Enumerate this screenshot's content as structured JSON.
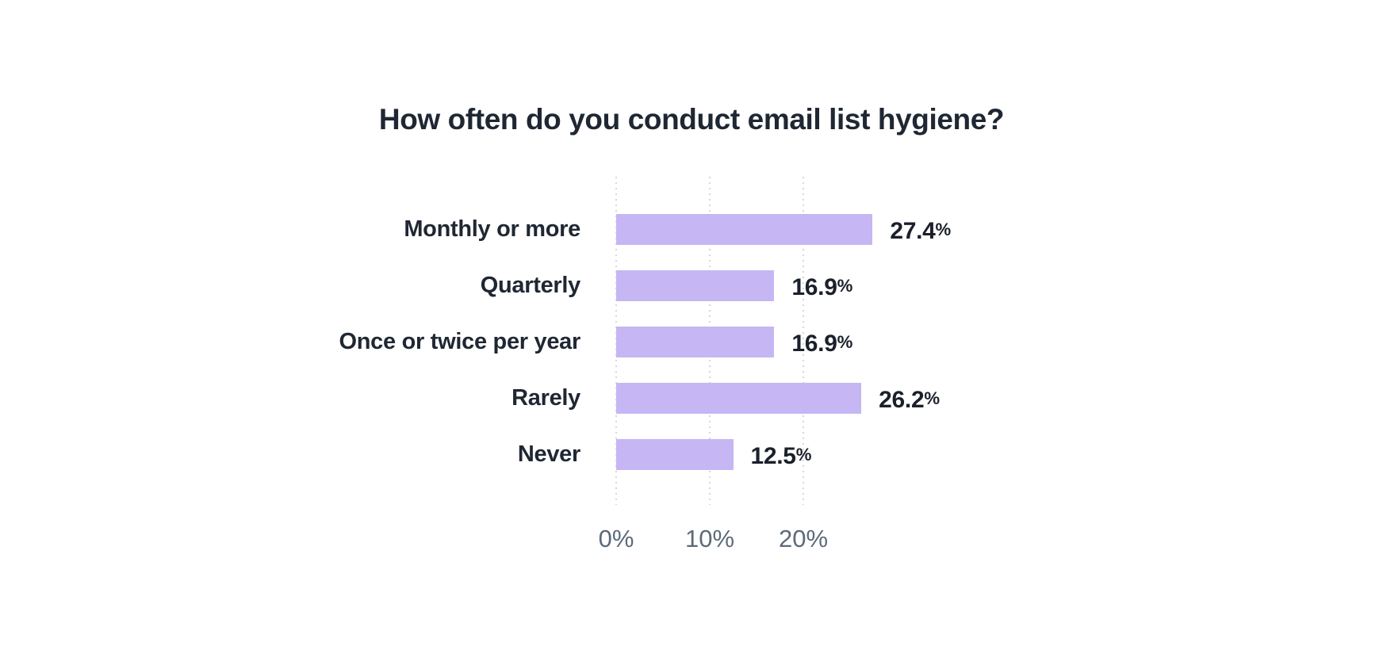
{
  "page": {
    "background": "#ffffff"
  },
  "chart_data": {
    "type": "bar",
    "orientation": "horizontal",
    "title": "How often do you conduct email list hygiene?",
    "categories": [
      "Monthly or more",
      "Quarterly",
      "Once or twice per year",
      "Rarely",
      "Never"
    ],
    "values": [
      27.4,
      16.9,
      16.9,
      26.2,
      12.5
    ],
    "value_labels": [
      "27.4%",
      "16.9%",
      "16.9%",
      "26.2%",
      "12.5%"
    ],
    "x_ticks": [
      {
        "value": 0,
        "label": "0%"
      },
      {
        "value": 10,
        "label": "10%"
      },
      {
        "value": 20,
        "label": "20%"
      }
    ],
    "xlim": [
      0,
      30
    ],
    "xlabel": "",
    "ylabel": "",
    "grid": "dotted-vertical-gridlines",
    "legend": "none",
    "bar_color": "#c6b6f4",
    "title_color": "#1f2733",
    "category_label_color": "#1f2733",
    "value_label_color": "#1b202b",
    "axis_text_color": "#5d6a79",
    "gridline_color": "#d7d7de"
  }
}
